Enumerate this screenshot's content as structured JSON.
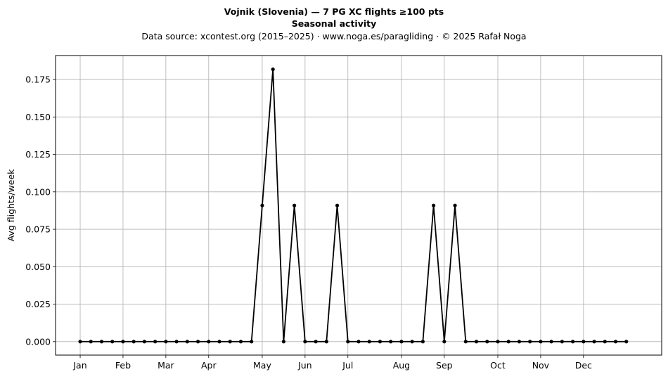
{
  "chart_data": {
    "type": "line",
    "title": "Vojnik (Slovenia)  —  7 PG XC flights ≥100 pts",
    "subtitle": "Seasonal activity",
    "source_line": "Data source: xcontest.org (2015–2025)  ·  www.noga.es/paragliding  ·  © 2025 Rafał Noga",
    "xlabel": "",
    "ylabel": "Avg flights/week",
    "x_tick_labels": [
      "Jan",
      "Feb",
      "Mar",
      "Apr",
      "May",
      "Jun",
      "Jul",
      "Aug",
      "Sep",
      "Oct",
      "Nov",
      "Dec"
    ],
    "x_tick_weeks": [
      1,
      5,
      9,
      13,
      18,
      22,
      26,
      31,
      35,
      40,
      44,
      48
    ],
    "yticks": [
      "0.000",
      "0.025",
      "0.050",
      "0.075",
      "0.100",
      "0.125",
      "0.150",
      "0.175"
    ],
    "xlim": [
      -1.3,
      55.3
    ],
    "ylim": [
      -0.009,
      0.191
    ],
    "grid": true,
    "line_color": "#000000",
    "series": [
      {
        "x": [
          1,
          2,
          3,
          4,
          5,
          6,
          7,
          8,
          9,
          10,
          11,
          12,
          13,
          14,
          15,
          16,
          17,
          18,
          19,
          20,
          21,
          22,
          23,
          24,
          25,
          26,
          27,
          28,
          29,
          30,
          31,
          32,
          33,
          34,
          35,
          36,
          37,
          38,
          39,
          40,
          41,
          42,
          43,
          44,
          45,
          46,
          47,
          48,
          49,
          50,
          51,
          52
        ],
        "values": [
          0,
          0,
          0,
          0,
          0,
          0,
          0,
          0,
          0,
          0,
          0,
          0,
          0,
          0,
          0,
          0,
          0,
          0.0909,
          0.1818,
          0,
          0.0909,
          0,
          0,
          0,
          0.0909,
          0,
          0,
          0,
          0,
          0,
          0,
          0,
          0,
          0.0909,
          0,
          0.0909,
          0,
          0,
          0,
          0,
          0,
          0,
          0,
          0,
          0,
          0,
          0,
          0,
          0,
          0,
          0,
          0
        ]
      }
    ]
  }
}
